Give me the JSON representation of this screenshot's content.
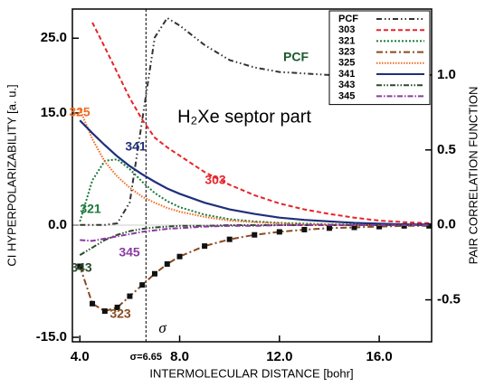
{
  "chart_data": {
    "type": "line",
    "title": "H₂Xe  septor part",
    "x_label": "INTERMOLECULAR DISTANCE [bohr]",
    "y_label": "CI HYPERPOLARIZABILITY [a. u.]",
    "y2_label": "PAIR CORRELATION FUNCTION",
    "x": [
      4.0,
      4.5,
      5.0,
      5.5,
      6.0,
      6.5,
      7.0,
      7.5,
      8.0,
      9.0,
      10.0,
      11.0,
      12.0,
      13.0,
      14.0,
      15.0,
      16.0,
      17.0,
      18.0
    ],
    "series": [
      {
        "name": "PCF",
        "color": "#333333",
        "dash": "6 3 1.5 3 1.5 3",
        "axis": "y2",
        "values": [
          0,
          0,
          0,
          0.01,
          0.15,
          0.7,
          1.25,
          1.38,
          1.33,
          1.2,
          1.1,
          1.05,
          1.02,
          1.01,
          1.0,
          1.0,
          1.0,
          1.0,
          1.0
        ]
      },
      {
        "name": "303",
        "color": "#e8232a",
        "dash": "5 3",
        "values": [
          null,
          27.1,
          23.8,
          20.4,
          17,
          14.1,
          11.7,
          10.4,
          9.3,
          7.1,
          5.4,
          4,
          2.9,
          2.1,
          1.5,
          1,
          0.6,
          0.4,
          0.25
        ]
      },
      {
        "name": "321",
        "color": "#1a7a3a",
        "dash": "2 2",
        "values": [
          0.5,
          6,
          8.6,
          8.8,
          7.5,
          5.8,
          4.3,
          3.2,
          2.4,
          1.4,
          0.8,
          0.5,
          0.3,
          0.2,
          0.1,
          0.1,
          0,
          0,
          0
        ]
      },
      {
        "name": "323",
        "color": "#8a4a20",
        "dash": "7 3 2 3",
        "marker": "square",
        "values": [
          -5.5,
          -10.5,
          -11.5,
          -11,
          -9.5,
          -8,
          -6.5,
          -5.2,
          -4.2,
          -2.8,
          -1.9,
          -1.3,
          -0.9,
          -0.6,
          -0.4,
          -0.3,
          -0.2,
          -0.1,
          -0.1
        ]
      },
      {
        "name": "325",
        "color": "#f06a20",
        "dash": "1.5 1.5",
        "values": [
          15.5,
          11.5,
          8.5,
          6.5,
          5,
          3.8,
          3,
          2.3,
          1.8,
          1.1,
          0.6,
          0.4,
          0.2,
          0.1,
          0.1,
          0,
          0,
          0,
          0
        ]
      },
      {
        "name": "341",
        "color": "#1f2f7a",
        "dash": "none",
        "values": [
          14,
          12.3,
          10.7,
          9.2,
          7.9,
          6.8,
          5.8,
          4.9,
          4.2,
          3,
          2.1,
          1.5,
          1,
          0.7,
          0.5,
          0.3,
          0.2,
          0.1,
          0.1
        ]
      },
      {
        "name": "343",
        "color": "#2a4a2a",
        "dash": "6 2 1.5 2 1.5 2",
        "values": [
          -4,
          -3,
          -2,
          -1.3,
          -0.8,
          -0.5,
          -0.3,
          -0.2,
          -0.1,
          -0.1,
          0,
          0,
          0,
          0,
          0,
          0,
          0,
          0,
          0
        ]
      },
      {
        "name": "345",
        "color": "#8a3aa0",
        "dash": "6 2 1.5 2",
        "values": [
          -2,
          -2.1,
          -1.8,
          -1.5,
          -1.2,
          -0.9,
          -0.7,
          -0.5,
          -0.4,
          -0.2,
          -0.1,
          -0.1,
          0,
          0,
          0,
          0,
          0,
          0,
          0
        ]
      }
    ],
    "xlim": [
      3.7,
      18.1
    ],
    "ylim": [
      -15.6,
      28.9
    ],
    "y2lim": [
      -0.78,
      1.44
    ],
    "xticks": [
      {
        "value": 4,
        "label": "4.0"
      },
      {
        "value": 8,
        "label": "8.0"
      },
      {
        "value": 12,
        "label": "12.0"
      },
      {
        "value": 16,
        "label": "16.0"
      }
    ],
    "yticks": [
      {
        "value": 25,
        "label": "25.0"
      },
      {
        "value": 15,
        "label": "15.0"
      },
      {
        "value": 0,
        "label": "0.0"
      },
      {
        "value": -15,
        "label": "-15.0"
      }
    ],
    "y2ticks": [
      {
        "value": 1,
        "label": "1.0"
      },
      0.5,
      {
        "value": 0,
        "label": "0.0"
      },
      -0.5
    ],
    "sigma": 6.65,
    "sigma_label": "σ=6.65",
    "sigma_symbol": "σ",
    "annotations": [
      "325",
      "341",
      "303",
      "321",
      "343",
      "345",
      "323",
      "PCF"
    ],
    "legend": "upper right"
  }
}
